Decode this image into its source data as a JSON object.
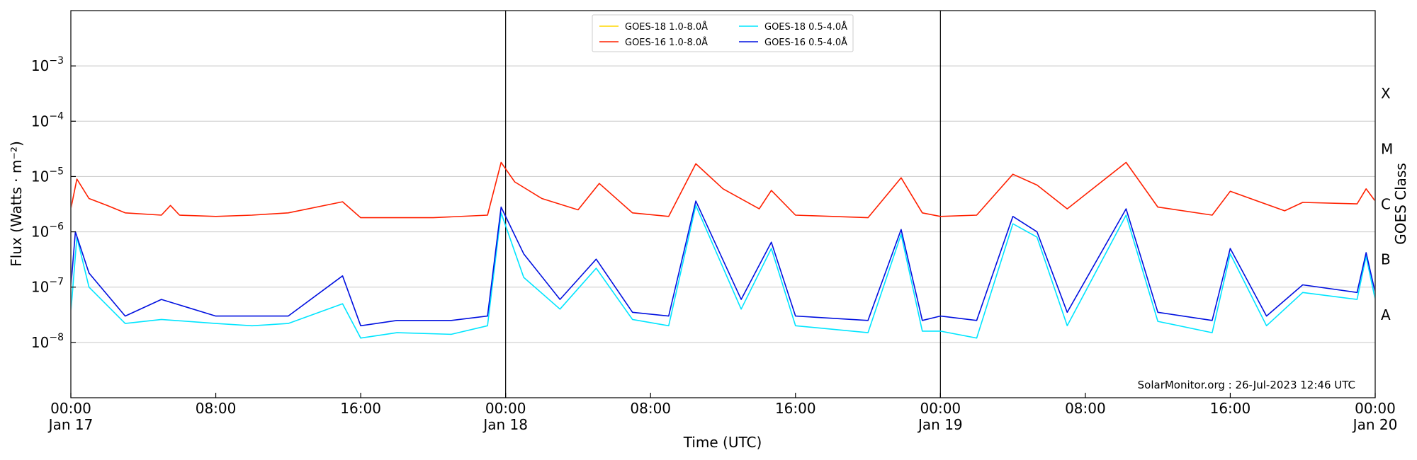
{
  "chart_data": {
    "type": "line",
    "title": "",
    "xlabel": "Time (UTC)",
    "ylabel": "Flux (Watts · m⁻²)",
    "y2label": "GOES Class",
    "yscale": "log",
    "ylim": [
      1e-09,
      0.01
    ],
    "xlim": [
      "2023-01-17 00:00",
      "2023-01-20 00:00"
    ],
    "x_ticks": [
      {
        "time": "2023-01-17 00:00",
        "label_top": "00:00",
        "label_bottom": "Jan 17"
      },
      {
        "time": "2023-01-17 08:00",
        "label_top": "08:00",
        "label_bottom": ""
      },
      {
        "time": "2023-01-17 16:00",
        "label_top": "16:00",
        "label_bottom": ""
      },
      {
        "time": "2023-01-18 00:00",
        "label_top": "00:00",
        "label_bottom": "Jan 18"
      },
      {
        "time": "2023-01-18 08:00",
        "label_top": "08:00",
        "label_bottom": ""
      },
      {
        "time": "2023-01-18 16:00",
        "label_top": "16:00",
        "label_bottom": ""
      },
      {
        "time": "2023-01-19 00:00",
        "label_top": "00:00",
        "label_bottom": "Jan 19"
      },
      {
        "time": "2023-01-19 08:00",
        "label_top": "08:00",
        "label_bottom": ""
      },
      {
        "time": "2023-01-19 16:00",
        "label_top": "16:00",
        "label_bottom": ""
      },
      {
        "time": "2023-01-20 00:00",
        "label_top": "00:00",
        "label_bottom": "Jan 20"
      }
    ],
    "y_ticks": [
      {
        "value": 1e-08,
        "mantissa": "10",
        "exponent": "−8"
      },
      {
        "value": 1e-07,
        "mantissa": "10",
        "exponent": "−7"
      },
      {
        "value": 1e-06,
        "mantissa": "10",
        "exponent": "−6"
      },
      {
        "value": 1e-05,
        "mantissa": "10",
        "exponent": "−5"
      },
      {
        "value": 0.0001,
        "mantissa": "10",
        "exponent": "−4"
      },
      {
        "value": 0.001,
        "mantissa": "10",
        "exponent": "−3"
      }
    ],
    "goes_classes": [
      {
        "label": "A",
        "value": 3.16e-08
      },
      {
        "label": "B",
        "value": 3.16e-07
      },
      {
        "label": "C",
        "value": 3.16e-06
      },
      {
        "label": "M",
        "value": 3.16e-05
      },
      {
        "label": "X",
        "value": 0.000316
      }
    ],
    "gridlines": [
      1e-08,
      1e-07,
      1e-06,
      1e-05,
      0.0001,
      0.001
    ],
    "day_boundaries": [
      "2023-01-18 00:00",
      "2023-01-19 00:00"
    ],
    "legend_position": "top-center",
    "legend": [
      {
        "label": "GOES-18 1.0-8.0Å",
        "color": "#ffd700"
      },
      {
        "label": "GOES-16 1.0-8.0Å",
        "color": "#ff2000"
      },
      {
        "label": "GOES-18 0.5-4.0Å",
        "color": "#00e5ff"
      },
      {
        "label": "GOES-16 0.5-4.0Å",
        "color": "#0010e0"
      }
    ],
    "annotation": "SolarMonitor.org : 26-Jul-2023 12:46 UTC",
    "series": [
      {
        "name": "GOES-16 1.0-8.0Å",
        "color": "#ff2000",
        "points": [
          [
            "2023-01-17 00:00",
            2.6e-06
          ],
          [
            "2023-01-17 00:20",
            9e-06
          ],
          [
            "2023-01-17 01:00",
            4e-06
          ],
          [
            "2023-01-17 02:00",
            3e-06
          ],
          [
            "2023-01-17 03:00",
            2.2e-06
          ],
          [
            "2023-01-17 05:00",
            2e-06
          ],
          [
            "2023-01-17 05:30",
            3e-06
          ],
          [
            "2023-01-17 06:00",
            2e-06
          ],
          [
            "2023-01-17 08:00",
            1.9e-06
          ],
          [
            "2023-01-17 10:00",
            2e-06
          ],
          [
            "2023-01-17 12:00",
            2.2e-06
          ],
          [
            "2023-01-17 15:00",
            3.5e-06
          ],
          [
            "2023-01-17 16:00",
            1.8e-06
          ],
          [
            "2023-01-17 20:00",
            1.8e-06
          ],
          [
            "2023-01-17 23:00",
            2e-06
          ],
          [
            "2023-01-17 23:45",
            1.8e-05
          ],
          [
            "2023-01-18 00:30",
            8e-06
          ],
          [
            "2023-01-18 02:00",
            4e-06
          ],
          [
            "2023-01-18 04:00",
            2.5e-06
          ],
          [
            "2023-01-18 05:10",
            7.5e-06
          ],
          [
            "2023-01-18 07:00",
            2.2e-06
          ],
          [
            "2023-01-18 09:00",
            1.9e-06
          ],
          [
            "2023-01-18 10:30",
            1.7e-05
          ],
          [
            "2023-01-18 12:00",
            6e-06
          ],
          [
            "2023-01-18 14:00",
            2.6e-06
          ],
          [
            "2023-01-18 14:40",
            5.6e-06
          ],
          [
            "2023-01-18 16:00",
            2e-06
          ],
          [
            "2023-01-18 20:00",
            1.8e-06
          ],
          [
            "2023-01-18 21:50",
            9.5e-06
          ],
          [
            "2023-01-18 23:00",
            2.2e-06
          ],
          [
            "2023-01-19 00:00",
            1.9e-06
          ],
          [
            "2023-01-19 02:00",
            2e-06
          ],
          [
            "2023-01-19 04:00",
            1.1e-05
          ],
          [
            "2023-01-19 05:20",
            7e-06
          ],
          [
            "2023-01-19 07:00",
            2.6e-06
          ],
          [
            "2023-01-19 10:15",
            1.8e-05
          ],
          [
            "2023-01-19 12:00",
            2.8e-06
          ],
          [
            "2023-01-19 15:00",
            2e-06
          ],
          [
            "2023-01-19 16:00",
            5.4e-06
          ],
          [
            "2023-01-19 19:00",
            2.4e-06
          ],
          [
            "2023-01-19 20:00",
            3.4e-06
          ],
          [
            "2023-01-19 23:00",
            3.2e-06
          ],
          [
            "2023-01-19 23:30",
            6e-06
          ],
          [
            "2023-01-20 00:00",
            3.6e-06
          ]
        ]
      },
      {
        "name": "GOES-18 0.5-4.0Å",
        "color": "#00e5ff",
        "points": [
          [
            "2023-01-17 00:00",
            3.5e-08
          ],
          [
            "2023-01-17 00:20",
            8e-07
          ],
          [
            "2023-01-17 01:00",
            1e-07
          ],
          [
            "2023-01-17 03:00",
            2.2e-08
          ],
          [
            "2023-01-17 05:00",
            2.6e-08
          ],
          [
            "2023-01-17 08:00",
            2.2e-08
          ],
          [
            "2023-01-17 10:00",
            2e-08
          ],
          [
            "2023-01-17 12:00",
            2.2e-08
          ],
          [
            "2023-01-17 15:00",
            5e-08
          ],
          [
            "2023-01-17 16:00",
            1.2e-08
          ],
          [
            "2023-01-17 18:00",
            1.5e-08
          ],
          [
            "2023-01-17 21:00",
            1.4e-08
          ],
          [
            "2023-01-17 23:00",
            2e-08
          ],
          [
            "2023-01-17 23:45",
            2.2e-06
          ],
          [
            "2023-01-18 01:00",
            1.5e-07
          ],
          [
            "2023-01-18 03:00",
            4e-08
          ],
          [
            "2023-01-18 05:00",
            2.2e-07
          ],
          [
            "2023-01-18 07:00",
            2.6e-08
          ],
          [
            "2023-01-18 09:00",
            2e-08
          ],
          [
            "2023-01-18 10:30",
            3e-06
          ],
          [
            "2023-01-18 13:00",
            4e-08
          ],
          [
            "2023-01-18 14:40",
            5e-07
          ],
          [
            "2023-01-18 16:00",
            2e-08
          ],
          [
            "2023-01-18 20:00",
            1.5e-08
          ],
          [
            "2023-01-18 21:50",
            9e-07
          ],
          [
            "2023-01-18 23:00",
            1.6e-08
          ],
          [
            "2023-01-19 00:00",
            1.6e-08
          ],
          [
            "2023-01-19 02:00",
            1.2e-08
          ],
          [
            "2023-01-19 04:00",
            1.4e-06
          ],
          [
            "2023-01-19 05:20",
            8e-07
          ],
          [
            "2023-01-19 07:00",
            2e-08
          ],
          [
            "2023-01-19 10:15",
            2e-06
          ],
          [
            "2023-01-19 12:00",
            2.4e-08
          ],
          [
            "2023-01-19 15:00",
            1.5e-08
          ],
          [
            "2023-01-19 16:00",
            4e-07
          ],
          [
            "2023-01-19 18:00",
            2e-08
          ],
          [
            "2023-01-19 20:00",
            8e-08
          ],
          [
            "2023-01-19 23:00",
            6e-08
          ],
          [
            "2023-01-19 23:30",
            3.6e-07
          ],
          [
            "2023-01-20 00:00",
            6e-08
          ]
        ]
      },
      {
        "name": "GOES-16 0.5-4.0Å",
        "color": "#0010e0",
        "points": [
          [
            "2023-01-17 00:00",
            1e-07
          ],
          [
            "2023-01-17 00:15",
            1e-06
          ],
          [
            "2023-01-17 01:00",
            1.8e-07
          ],
          [
            "2023-01-17 03:00",
            3e-08
          ],
          [
            "2023-01-17 05:00",
            6e-08
          ],
          [
            "2023-01-17 08:00",
            3e-08
          ],
          [
            "2023-01-17 10:00",
            3e-08
          ],
          [
            "2023-01-17 12:00",
            3e-08
          ],
          [
            "2023-01-17 15:00",
            1.6e-07
          ],
          [
            "2023-01-17 16:00",
            2e-08
          ],
          [
            "2023-01-17 18:00",
            2.5e-08
          ],
          [
            "2023-01-17 21:00",
            2.5e-08
          ],
          [
            "2023-01-17 23:00",
            3e-08
          ],
          [
            "2023-01-17 23:45",
            2.8e-06
          ],
          [
            "2023-01-18 01:00",
            4e-07
          ],
          [
            "2023-01-18 03:00",
            6e-08
          ],
          [
            "2023-01-18 05:00",
            3.2e-07
          ],
          [
            "2023-01-18 07:00",
            3.5e-08
          ],
          [
            "2023-01-18 09:00",
            3e-08
          ],
          [
            "2023-01-18 10:30",
            3.6e-06
          ],
          [
            "2023-01-18 13:00",
            6e-08
          ],
          [
            "2023-01-18 14:40",
            6.5e-07
          ],
          [
            "2023-01-18 16:00",
            3e-08
          ],
          [
            "2023-01-18 20:00",
            2.5e-08
          ],
          [
            "2023-01-18 21:50",
            1.1e-06
          ],
          [
            "2023-01-18 23:00",
            2.5e-08
          ],
          [
            "2023-01-19 00:00",
            3e-08
          ],
          [
            "2023-01-19 02:00",
            2.5e-08
          ],
          [
            "2023-01-19 04:00",
            1.9e-06
          ],
          [
            "2023-01-19 05:20",
            1e-06
          ],
          [
            "2023-01-19 07:00",
            3.5e-08
          ],
          [
            "2023-01-19 10:15",
            2.6e-06
          ],
          [
            "2023-01-19 12:00",
            3.5e-08
          ],
          [
            "2023-01-19 15:00",
            2.5e-08
          ],
          [
            "2023-01-19 16:00",
            5e-07
          ],
          [
            "2023-01-19 18:00",
            3e-08
          ],
          [
            "2023-01-19 20:00",
            1.1e-07
          ],
          [
            "2023-01-19 23:00",
            8e-08
          ],
          [
            "2023-01-19 23:30",
            4.2e-07
          ],
          [
            "2023-01-20 00:00",
            8e-08
          ]
        ]
      }
    ]
  }
}
